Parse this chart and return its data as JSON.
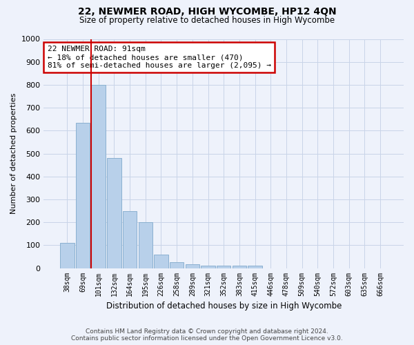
{
  "title": "22, NEWMER ROAD, HIGH WYCOMBE, HP12 4QN",
  "subtitle": "Size of property relative to detached houses in High Wycombe",
  "xlabel": "Distribution of detached houses by size in High Wycombe",
  "ylabel": "Number of detached properties",
  "footer_line1": "Contains HM Land Registry data © Crown copyright and database right 2024.",
  "footer_line2": "Contains public sector information licensed under the Open Government Licence v3.0.",
  "categories": [
    "38sqm",
    "69sqm",
    "101sqm",
    "132sqm",
    "164sqm",
    "195sqm",
    "226sqm",
    "258sqm",
    "289sqm",
    "321sqm",
    "352sqm",
    "383sqm",
    "415sqm",
    "446sqm",
    "478sqm",
    "509sqm",
    "540sqm",
    "572sqm",
    "603sqm",
    "635sqm",
    "666sqm"
  ],
  "values": [
    110,
    635,
    800,
    480,
    250,
    200,
    60,
    25,
    18,
    12,
    10,
    10,
    10,
    0,
    0,
    0,
    0,
    0,
    0,
    0,
    0
  ],
  "bar_color": "#b8d0ea",
  "bar_edge_color": "#8ab0d0",
  "vline_x_index": 2,
  "vline_color": "#cc0000",
  "ylim": [
    0,
    1000
  ],
  "yticks": [
    0,
    100,
    200,
    300,
    400,
    500,
    600,
    700,
    800,
    900,
    1000
  ],
  "annotation_text": "22 NEWMER ROAD: 91sqm\n← 18% of detached houses are smaller (470)\n81% of semi-detached houses are larger (2,095) →",
  "annotation_box_color": "#ffffff",
  "annotation_box_edge": "#cc0000",
  "grid_color": "#c8d4e8",
  "background_color": "#eef2fb"
}
